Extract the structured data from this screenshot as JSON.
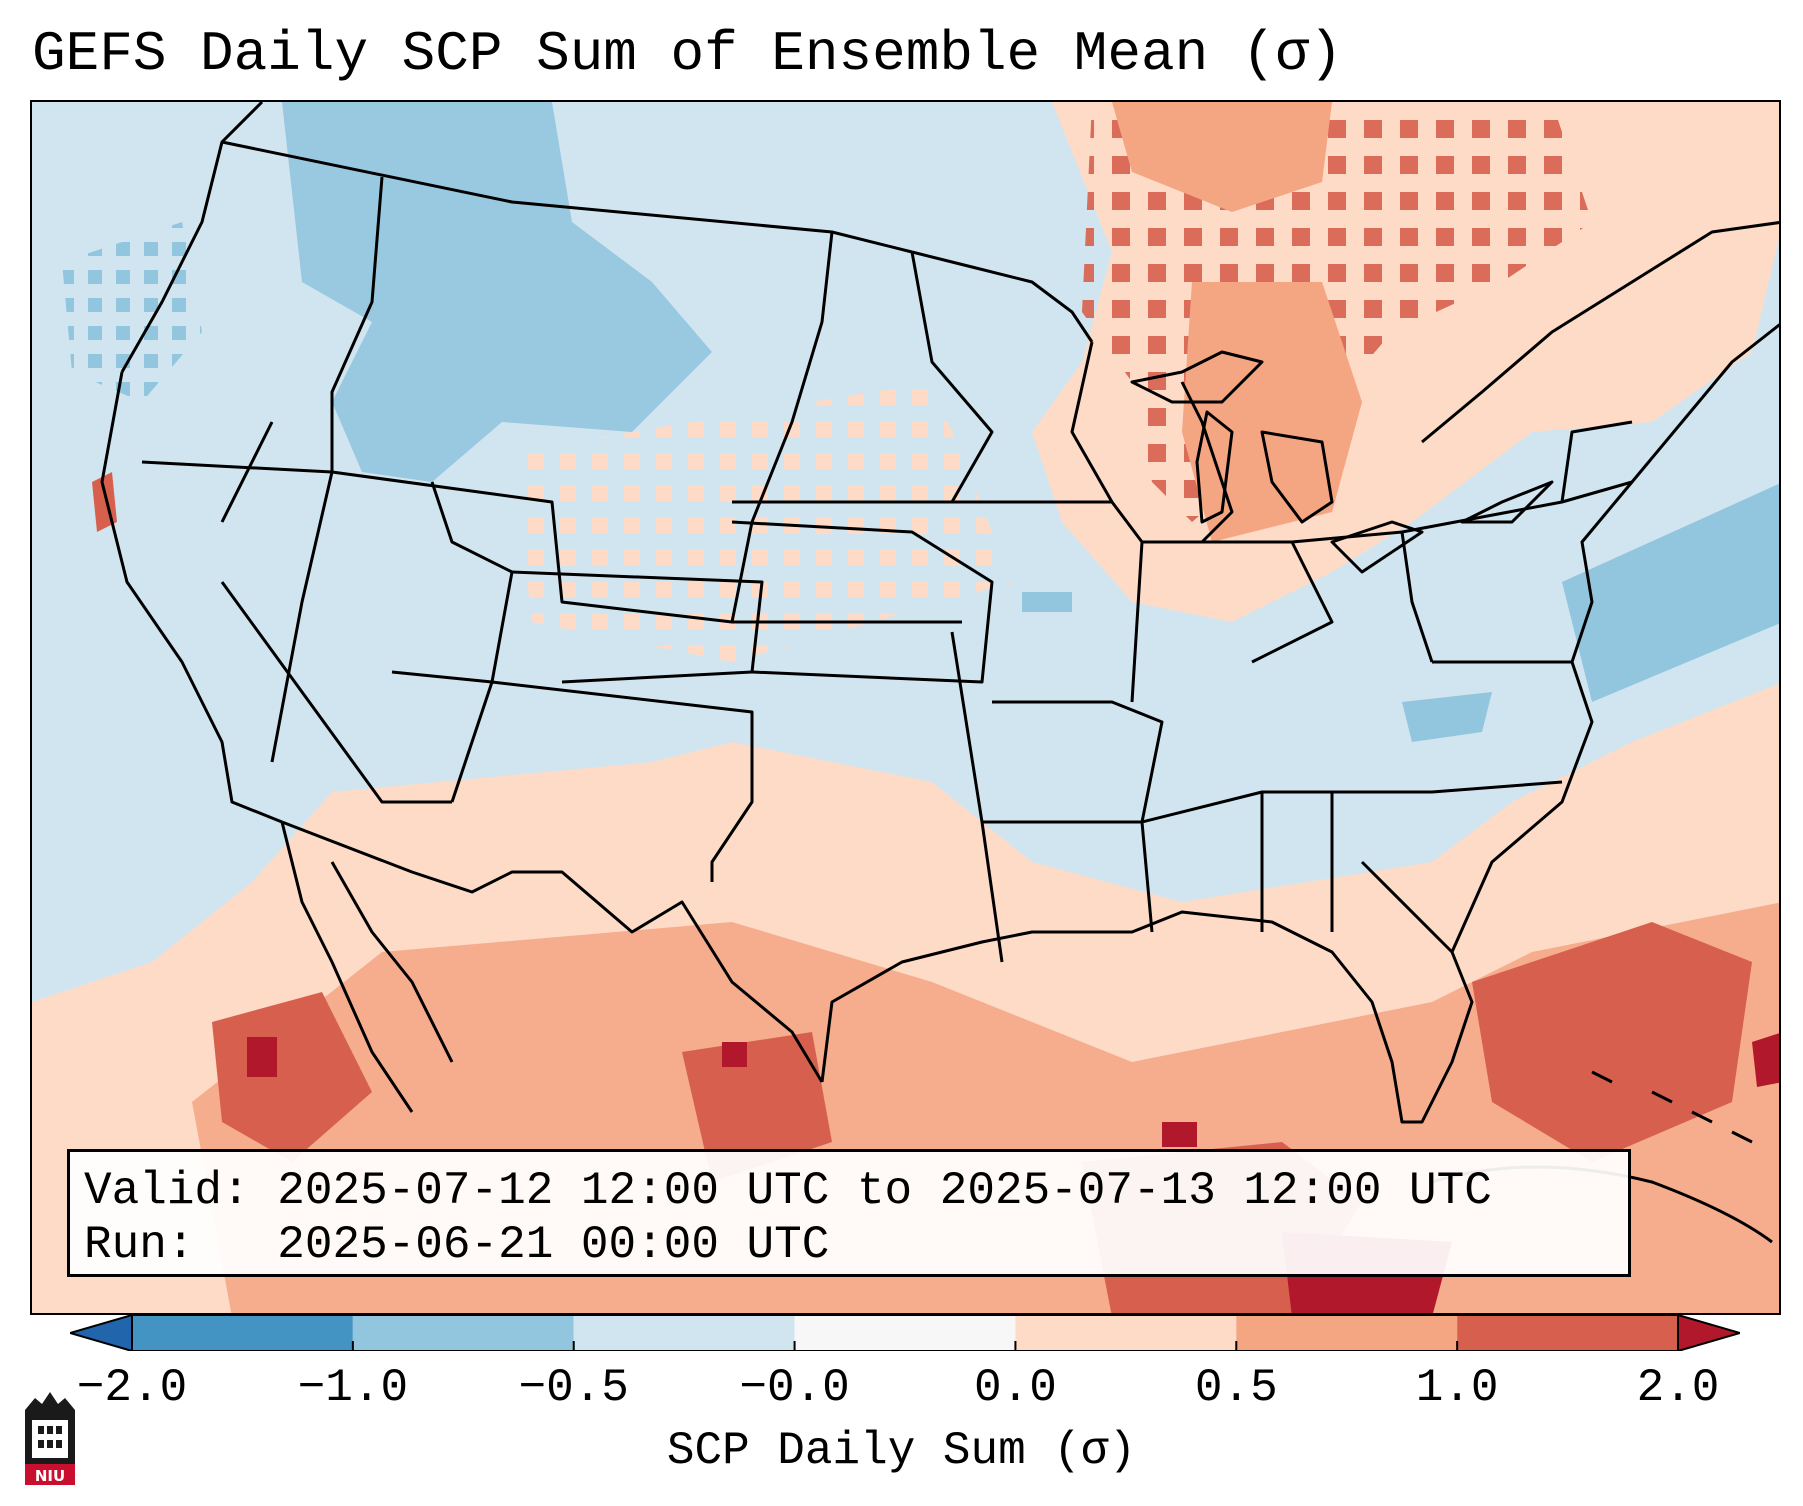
{
  "title": "GEFS Daily SCP Sum of Ensemble Mean (σ)",
  "info": {
    "valid_label": "Valid:",
    "valid_value": "2025-07-12 12:00 UTC to 2025-07-13 12:00 UTC",
    "run_label": "Run:",
    "run_value": "2025-06-21 00:00 UTC"
  },
  "colorbar": {
    "label": "SCP Daily Sum (σ)",
    "ticks": [
      "−2.0",
      "−1.0",
      "−0.5",
      "−0.0",
      "0.0",
      "0.5",
      "1.0",
      "2.0"
    ],
    "bin_colors": [
      "#4393c3",
      "#92c5de",
      "#d1e5f0",
      "#f7f7f7",
      "#fddbc7",
      "#f4a582",
      "#d6604d"
    ],
    "under_color": "#2166ac",
    "over_color": "#b2182b"
  },
  "logo": {
    "text": "NIU"
  },
  "colors": {
    "light_blue": "#d1e5f0",
    "mid_blue": "#92c5de",
    "light_red": "#fddbc7",
    "mid_red": "#f4a582",
    "dark_red": "#d6604d",
    "deep_red": "#b2182b"
  }
}
